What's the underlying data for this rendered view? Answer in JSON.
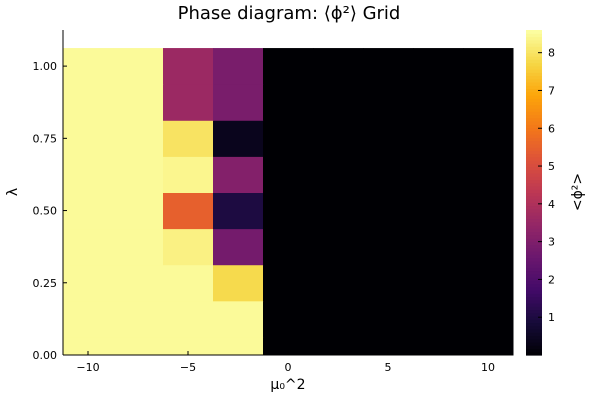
{
  "chart_data": {
    "type": "heatmap",
    "title": "Phase diagram: ⟨ϕ²⟩ Grid",
    "xlabel": "μ₀^2",
    "ylabel": "λ",
    "colorbar_label": "<ϕ²>",
    "colormap": "inferno",
    "xlim": [
      -11.25,
      11.25
    ],
    "ylim": [
      0.0,
      1.125
    ],
    "clim": [
      0.0,
      8.6
    ],
    "x_ticks": [
      -10,
      -5,
      0,
      5,
      10
    ],
    "x_tick_labels": [
      "−10",
      "−5",
      "0",
      "5",
      "10"
    ],
    "y_ticks": [
      0.0,
      0.25,
      0.5,
      0.75,
      1.0
    ],
    "y_tick_labels": [
      "0.00",
      "0.25",
      "0.50",
      "0.75",
      "1.00"
    ],
    "colorbar_ticks": [
      1,
      2,
      3,
      4,
      5,
      6,
      7,
      8
    ],
    "colorbar_tick_labels": [
      "1",
      "2",
      "3",
      "4",
      "5",
      "6",
      "7",
      "8"
    ],
    "x_centers": [
      -10,
      -7.5,
      -5,
      -2.5,
      0,
      2.5,
      5,
      7.5,
      10
    ],
    "y_centers": [
      0.0,
      0.125,
      0.25,
      0.375,
      0.5,
      0.625,
      0.75,
      0.875,
      1.0
    ],
    "z": [
      [
        8.5,
        8.5,
        8.5,
        8.5,
        0.0,
        0.0,
        0.0,
        0.0,
        0.0
      ],
      [
        8.5,
        8.5,
        8.5,
        8.5,
        0.0,
        0.0,
        0.0,
        0.0,
        0.0
      ],
      [
        8.5,
        8.5,
        8.5,
        7.8,
        0.0,
        0.0,
        0.0,
        0.0,
        0.0
      ],
      [
        8.5,
        8.5,
        8.3,
        2.8,
        0.0,
        0.0,
        0.0,
        0.0,
        0.0
      ],
      [
        8.5,
        8.5,
        5.5,
        1.0,
        0.0,
        0.0,
        0.0,
        0.0,
        0.0
      ],
      [
        8.5,
        8.5,
        8.4,
        3.1,
        0.0,
        0.0,
        0.0,
        0.0,
        0.0
      ],
      [
        8.5,
        8.5,
        8.0,
        0.4,
        0.0,
        0.0,
        0.0,
        0.0,
        0.0
      ],
      [
        8.5,
        8.5,
        3.6,
        2.9,
        0.0,
        0.0,
        0.0,
        0.0,
        0.0
      ],
      [
        8.5,
        8.5,
        3.6,
        2.9,
        0.0,
        0.0,
        0.0,
        0.0,
        0.0
      ]
    ]
  }
}
